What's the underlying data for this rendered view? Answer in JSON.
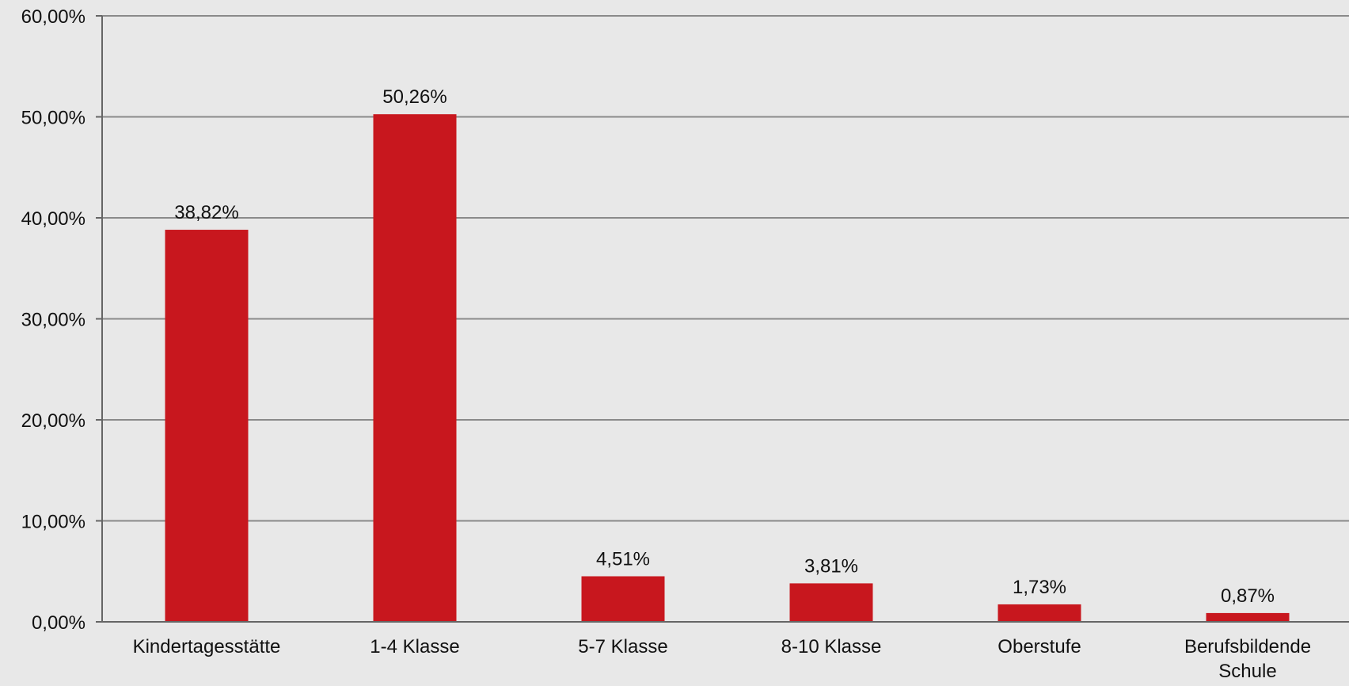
{
  "chart_data": {
    "type": "bar",
    "categories": [
      "Kindertagesstätte",
      "1-4 Klasse",
      "5-7 Klasse",
      "8-10 Klasse",
      "Oberstufe",
      "Berufsbildende Schule"
    ],
    "category_label_lines": [
      [
        "Kindertagesstätte"
      ],
      [
        "1-4 Klasse"
      ],
      [
        "5-7 Klasse"
      ],
      [
        "8-10 Klasse"
      ],
      [
        "Oberstufe"
      ],
      [
        "Berufsbildende",
        "Schule"
      ]
    ],
    "values": [
      38.82,
      50.26,
      4.51,
      3.81,
      1.73,
      0.87
    ],
    "data_labels": [
      "38,82%",
      "50,26%",
      "4,51%",
      "3,81%",
      "1,73%",
      "0,87%"
    ],
    "y_ticks": [
      0,
      10,
      20,
      30,
      40,
      50,
      60
    ],
    "y_tick_labels": [
      "0,00%",
      "10,00%",
      "20,00%",
      "30,00%",
      "40,00%",
      "50,00%",
      "60,00%"
    ],
    "ylim": [
      0,
      60
    ],
    "grid": true,
    "legend": "none",
    "title": "",
    "xlabel": "",
    "ylabel": "",
    "colors": {
      "bar": "#c8171e",
      "background": "#e8e8e8",
      "grid": "#8a8a8a",
      "axis": "#666666",
      "text": "#111111"
    }
  }
}
